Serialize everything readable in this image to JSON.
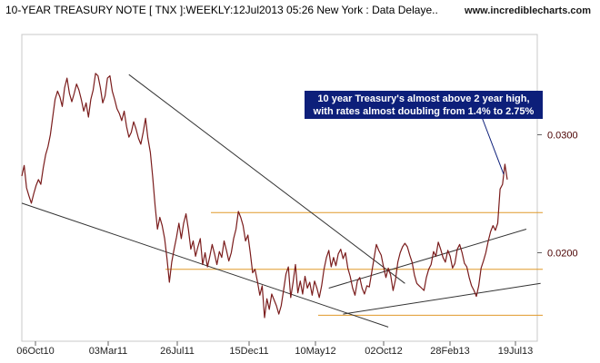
{
  "header": {
    "title": "10-YEAR TREASURY NOTE [ TNX ]:WEEKLY:12Jul2013 05:26 New York : Data Delaye..",
    "site": "www.incrediblecharts.com"
  },
  "chart_data": {
    "type": "line",
    "title": "10-YEAR TREASURY NOTE [ TNX ]:WEEKLY:12Jul2013 05:26 New York : Data Delaye..",
    "xlabel": "",
    "ylabel": "",
    "x_ticks": [
      "06Oct10",
      "03Mar11",
      "26Jul11",
      "15Dec11",
      "10May12",
      "02Oct12",
      "28Feb13",
      "19Jul13"
    ],
    "y_ticks": [
      {
        "value": 0.02,
        "label": "0.0200"
      },
      {
        "value": 0.03,
        "label": "0.0300"
      }
    ],
    "ylim": [
      0.0125,
      0.0385
    ],
    "grid": false,
    "colors": {
      "price": "#7a1c1c",
      "trendline": "#333333",
      "support": "#e09a2a",
      "note_bg": "#0d1f7a"
    },
    "support_levels": [
      0.0234,
      0.0186,
      0.0147
    ],
    "trendlines": [
      {
        "from": [
          0,
          0.0242
        ],
        "to": [
          154,
          0.0137
        ]
      },
      {
        "from": [
          45,
          0.0351
        ],
        "to": [
          161,
          0.0174
        ]
      },
      {
        "from": [
          129,
          0.017
        ],
        "to": [
          212,
          0.022
        ]
      },
      {
        "from": [
          135,
          0.0148
        ],
        "to": [
          218,
          0.0174
        ]
      }
    ],
    "series": [
      {
        "values": [
          0.0265,
          0.0274,
          0.0255,
          0.0248,
          0.0242,
          0.025,
          0.0257,
          0.0262,
          0.0258,
          0.0272,
          0.0283,
          0.029,
          0.03,
          0.0315,
          0.033,
          0.0337,
          0.0332,
          0.0324,
          0.034,
          0.0348,
          0.0335,
          0.0328,
          0.0335,
          0.0343,
          0.0338,
          0.033,
          0.032,
          0.0327,
          0.0315,
          0.033,
          0.0338,
          0.0352,
          0.035,
          0.034,
          0.0327,
          0.0333,
          0.0348,
          0.035,
          0.0337,
          0.033,
          0.0322,
          0.0318,
          0.0312,
          0.032,
          0.0307,
          0.0298,
          0.0302,
          0.0311,
          0.0305,
          0.0297,
          0.0292,
          0.0302,
          0.0314,
          0.0297,
          0.0285,
          0.0264,
          0.024,
          0.022,
          0.023,
          0.0223,
          0.0212,
          0.0195,
          0.0175,
          0.0192,
          0.0203,
          0.0213,
          0.0225,
          0.0212,
          0.0225,
          0.0233,
          0.022,
          0.0203,
          0.021,
          0.0197,
          0.0205,
          0.0212,
          0.019,
          0.02,
          0.0188,
          0.0197,
          0.0207,
          0.0199,
          0.019,
          0.0201,
          0.0196,
          0.021,
          0.0202,
          0.0193,
          0.02,
          0.0212,
          0.022,
          0.0235,
          0.023,
          0.0223,
          0.021,
          0.0215,
          0.02,
          0.0183,
          0.0186,
          0.0176,
          0.0164,
          0.0172,
          0.0145,
          0.0161,
          0.0152,
          0.0165,
          0.016,
          0.0155,
          0.0148,
          0.0155,
          0.0168,
          0.0182,
          0.0188,
          0.0162,
          0.0175,
          0.019,
          0.0166,
          0.0176,
          0.0165,
          0.018,
          0.017,
          0.0175,
          0.0164,
          0.0176,
          0.017,
          0.0162,
          0.0172,
          0.0186,
          0.0196,
          0.0202,
          0.0188,
          0.0196,
          0.0189,
          0.0199,
          0.0203,
          0.0195,
          0.02,
          0.0187,
          0.018,
          0.017,
          0.0164,
          0.0176,
          0.0179,
          0.017,
          0.0165,
          0.0172,
          0.0171,
          0.0183,
          0.0195,
          0.0207,
          0.0202,
          0.0198,
          0.0188,
          0.0179,
          0.0187,
          0.0181,
          0.0168,
          0.0177,
          0.0192,
          0.02,
          0.0205,
          0.0208,
          0.0205,
          0.0198,
          0.0192,
          0.0181,
          0.0174,
          0.0172,
          0.017,
          0.0168,
          0.0179,
          0.0186,
          0.019,
          0.0201,
          0.0197,
          0.0209,
          0.0203,
          0.0196,
          0.0192,
          0.0202,
          0.0197,
          0.0187,
          0.0191,
          0.0203,
          0.0207,
          0.02,
          0.0191,
          0.0188,
          0.0179,
          0.0172,
          0.0168,
          0.0163,
          0.0172,
          0.0187,
          0.0193,
          0.02,
          0.021,
          0.0218,
          0.0223,
          0.0219,
          0.0225,
          0.0254,
          0.0258,
          0.0275,
          0.0262
        ]
      }
    ],
    "annotations": [
      {
        "line1": "10 year Treasury's almost above 2 year high,",
        "line2": "with rates almost doubling from 1.4% to 2.75%",
        "points_to_index": 204
      }
    ]
  }
}
